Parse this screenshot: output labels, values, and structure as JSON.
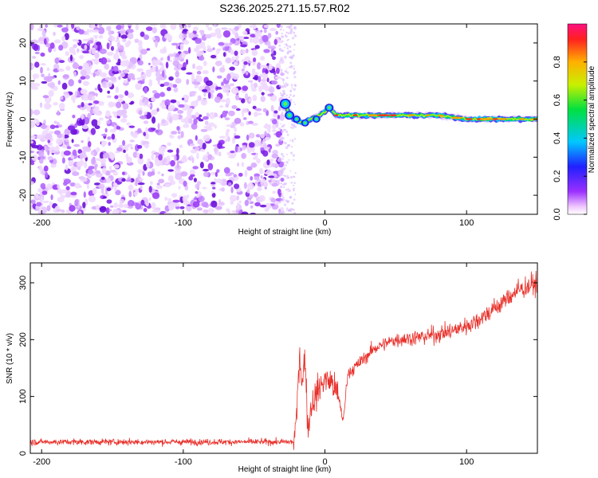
{
  "title": "S236.2025.271.15.57.R02",
  "chart_data": [
    {
      "type": "heatmap",
      "xlabel": "Height of straight line (km)",
      "ylabel": "Frequency (Hz)",
      "xlim": [
        -208,
        150
      ],
      "ylim": [
        -25,
        25
      ],
      "xticks": [
        -200,
        -100,
        0,
        100
      ],
      "yticks": [
        -20,
        -10,
        0,
        10,
        20
      ],
      "noise_region_x": [
        -208,
        -30
      ],
      "signal_start_x": -30,
      "signal_track": [
        {
          "x": -28,
          "y": 4
        },
        {
          "x": -26,
          "y": 2
        },
        {
          "x": -22,
          "y": 0
        },
        {
          "x": -16,
          "y": -1
        },
        {
          "x": -10,
          "y": 0
        },
        {
          "x": -4,
          "y": 1
        },
        {
          "x": 0,
          "y": 2
        },
        {
          "x": 3,
          "y": 3
        },
        {
          "x": 8,
          "y": 1
        },
        {
          "x": 20,
          "y": 1
        },
        {
          "x": 40,
          "y": 1
        },
        {
          "x": 60,
          "y": 1
        },
        {
          "x": 80,
          "y": 1
        },
        {
          "x": 100,
          "y": 0
        },
        {
          "x": 120,
          "y": 0
        },
        {
          "x": 150,
          "y": 0
        }
      ],
      "colorbar": {
        "label": "Normalized spectral amplitude",
        "range": [
          0,
          1
        ],
        "ticks": [
          "0.0",
          "0.2",
          "0.4",
          "0.6",
          "0.8"
        ]
      }
    },
    {
      "type": "line",
      "xlabel": "Height of straight line (km)",
      "ylabel": "SNR (10 * v/v)",
      "xlim": [
        -208,
        150
      ],
      "ylim": [
        0,
        335
      ],
      "xticks": [
        -200,
        -100,
        0,
        100
      ],
      "yticks": [
        0,
        100,
        200,
        300
      ],
      "series": [
        {
          "name": "SNR",
          "color": "#e8302a",
          "points": [
            {
              "x": -208,
              "y": 20
            },
            {
              "x": -150,
              "y": 20
            },
            {
              "x": -100,
              "y": 20
            },
            {
              "x": -50,
              "y": 20
            },
            {
              "x": -22,
              "y": 20
            },
            {
              "x": -20,
              "y": 60
            },
            {
              "x": -18,
              "y": 180
            },
            {
              "x": -16,
              "y": 120
            },
            {
              "x": -14,
              "y": 175
            },
            {
              "x": -12,
              "y": 40
            },
            {
              "x": -10,
              "y": 80
            },
            {
              "x": -5,
              "y": 110
            },
            {
              "x": 0,
              "y": 130
            },
            {
              "x": 5,
              "y": 125
            },
            {
              "x": 10,
              "y": 95
            },
            {
              "x": 13,
              "y": 55
            },
            {
              "x": 16,
              "y": 140
            },
            {
              "x": 25,
              "y": 160
            },
            {
              "x": 35,
              "y": 185
            },
            {
              "x": 50,
              "y": 200
            },
            {
              "x": 70,
              "y": 205
            },
            {
              "x": 90,
              "y": 215
            },
            {
              "x": 105,
              "y": 230
            },
            {
              "x": 120,
              "y": 255
            },
            {
              "x": 135,
              "y": 285
            },
            {
              "x": 150,
              "y": 300
            }
          ]
        }
      ]
    }
  ]
}
